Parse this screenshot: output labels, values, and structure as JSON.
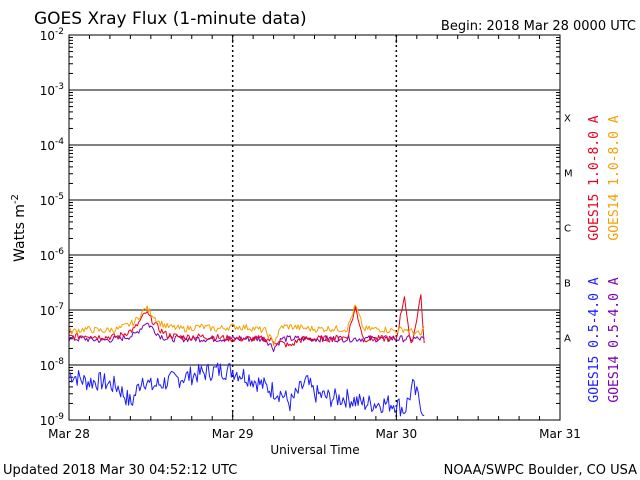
{
  "chart_data": {
    "type": "line",
    "title": "GOES Xray Flux (1-minute data)",
    "begin_label": "Begin:  2018 Mar 28 0000 UTC",
    "xlabel": "Universal Time",
    "ylabel": "Watts m",
    "ylabel_sup": "-2",
    "x_ticks": [
      "Mar 28",
      "Mar 29",
      "Mar 30",
      "Mar 31"
    ],
    "x_range_days": [
      0,
      3
    ],
    "y_scale": "log",
    "ylim": [
      1e-09,
      0.01
    ],
    "y_ticks": [
      {
        "base": "10",
        "exp": "-2"
      },
      {
        "base": "10",
        "exp": "-3"
      },
      {
        "base": "10",
        "exp": "-4"
      },
      {
        "base": "10",
        "exp": "-5"
      },
      {
        "base": "10",
        "exp": "-6"
      },
      {
        "base": "10",
        "exp": "-7"
      },
      {
        "base": "10",
        "exp": "-8"
      },
      {
        "base": "10",
        "exp": "-9"
      }
    ],
    "flare_classes": [
      "X",
      "M",
      "C",
      "B",
      "A"
    ],
    "grid": true,
    "legend_right_top": [
      {
        "label": "GOES15 1.0-8.0 A",
        "color": "#e8001a"
      },
      {
        "label": "GOES14 1.0-8.0 A",
        "color": "#f5a000"
      }
    ],
    "legend_right_bottom": [
      {
        "label": "GOES15 0.5-4.0 A",
        "color": "#1a1aff"
      },
      {
        "label": "GOES14 0.5-4.0 A",
        "color": "#7a00b5"
      }
    ],
    "series": [
      {
        "name": "GOES14 1.0-8.0 A",
        "color": "#f5a000",
        "x": [
          0.0,
          0.1,
          0.2,
          0.3,
          0.4,
          0.47,
          0.5,
          0.55,
          0.6,
          0.7,
          0.8,
          0.9,
          1.0,
          1.1,
          1.2,
          1.25,
          1.3,
          1.35,
          1.4,
          1.5,
          1.6,
          1.7,
          1.75,
          1.8,
          1.9,
          2.0,
          2.05,
          2.1,
          2.15,
          2.17
        ],
        "y": [
          4e-08,
          4.5e-08,
          4.2e-08,
          4.5e-08,
          6e-08,
          1.1e-07,
          9e-08,
          6e-08,
          5e-08,
          4.5e-08,
          5e-08,
          4.5e-08,
          5e-08,
          4.8e-08,
          4.2e-08,
          2.5e-08,
          5e-08,
          5e-08,
          4.8e-08,
          4.5e-08,
          4.6e-08,
          4.5e-08,
          1.2e-07,
          4.5e-08,
          4.5e-08,
          4.2e-08,
          4.5e-08,
          4e-08,
          3.5e-08,
          5e-08
        ]
      },
      {
        "name": "GOES15 1.0-8.0 A",
        "color": "#e8001a",
        "x": [
          0.0,
          0.1,
          0.2,
          0.3,
          0.4,
          0.47,
          0.5,
          0.55,
          0.6,
          0.7,
          0.8,
          0.9,
          1.0,
          1.1,
          1.2,
          1.3,
          1.35,
          1.4,
          1.45,
          1.5,
          1.6,
          1.7,
          1.75,
          1.8,
          1.9,
          2.0,
          2.05,
          2.08,
          2.1,
          2.15,
          2.17
        ],
        "y": [
          3.2e-08,
          3.5e-08,
          3.2e-08,
          3.3e-08,
          4.5e-08,
          9e-08,
          7e-08,
          4.5e-08,
          3.5e-08,
          3.2e-08,
          3.3e-08,
          3.2e-08,
          3e-08,
          3e-08,
          3e-08,
          2.5e-08,
          2.2e-08,
          2.8e-08,
          3e-08,
          3e-08,
          3e-08,
          3.2e-08,
          1.1e-07,
          3e-08,
          3e-08,
          3e-08,
          1.9e-07,
          3e-08,
          2.8e-08,
          1.9e-07,
          2.5e-08
        ]
      },
      {
        "name": "GOES14 0.5-4.0 A",
        "color": "#7a00b5",
        "x": [
          0.0,
          0.1,
          0.2,
          0.3,
          0.4,
          0.47,
          0.5,
          0.55,
          0.6,
          0.7,
          0.8,
          0.9,
          1.0,
          1.1,
          1.2,
          1.25,
          1.3,
          1.35,
          1.4,
          1.5,
          1.6,
          1.7,
          1.8,
          1.9,
          2.0,
          2.1,
          2.17
        ],
        "y": [
          3e-08,
          3e-08,
          2.8e-08,
          3e-08,
          3.5e-08,
          6e-08,
          5e-08,
          3.5e-08,
          3e-08,
          3e-08,
          3e-08,
          3e-08,
          3e-08,
          3e-08,
          3e-08,
          2e-08,
          3e-08,
          3e-08,
          3e-08,
          3e-08,
          3e-08,
          3e-08,
          3e-08,
          3e-08,
          3e-08,
          3e-08,
          3e-08
        ]
      },
      {
        "name": "GOES15 0.5-4.0 A",
        "color": "#1a1aff",
        "x": [
          0.0,
          0.05,
          0.1,
          0.2,
          0.3,
          0.38,
          0.45,
          0.5,
          0.6,
          0.7,
          0.8,
          0.9,
          1.0,
          1.1,
          1.2,
          1.3,
          1.35,
          1.45,
          1.5,
          1.6,
          1.7,
          1.8,
          1.9,
          2.0,
          2.05,
          2.1,
          2.15,
          2.17
        ],
        "y": [
          7e-09,
          6e-09,
          5e-09,
          5e-09,
          4e-09,
          2e-09,
          6e-09,
          4e-09,
          5e-09,
          6e-09,
          7e-09,
          8e-09,
          8e-09,
          6e-09,
          4e-09,
          3e-09,
          2e-09,
          5e-09,
          3e-09,
          2.5e-09,
          2.5e-09,
          2e-09,
          2e-09,
          2e-09,
          1.5e-09,
          4e-09,
          2e-09,
          1.2e-09
        ]
      }
    ]
  },
  "footer": {
    "updated": "Updated 2018 Mar 30 04:52:12 UTC",
    "credit": "NOAA/SWPC Boulder, CO USA"
  }
}
